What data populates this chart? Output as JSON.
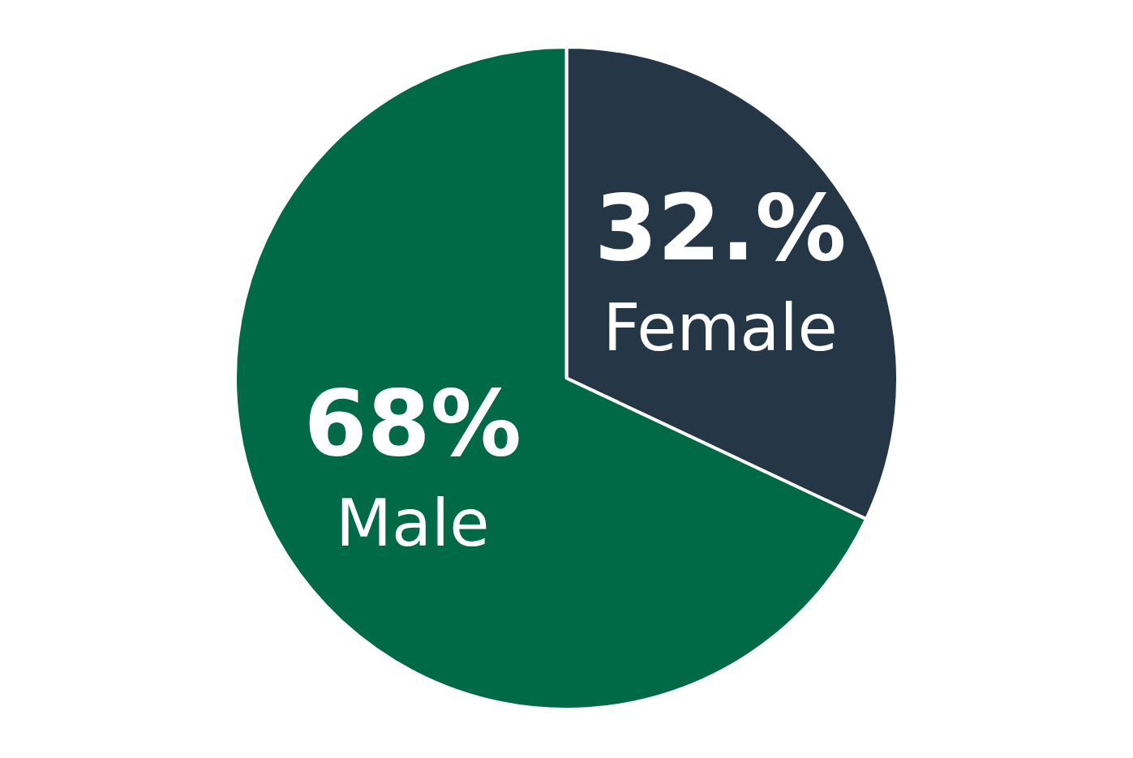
{
  "chart_data": {
    "type": "pie",
    "categories": [
      "Female",
      "Male"
    ],
    "values": [
      32,
      68
    ],
    "value_labels": [
      "32.%",
      "68%"
    ],
    "colors": [
      "#253746",
      "#006a46"
    ],
    "legend": false
  }
}
